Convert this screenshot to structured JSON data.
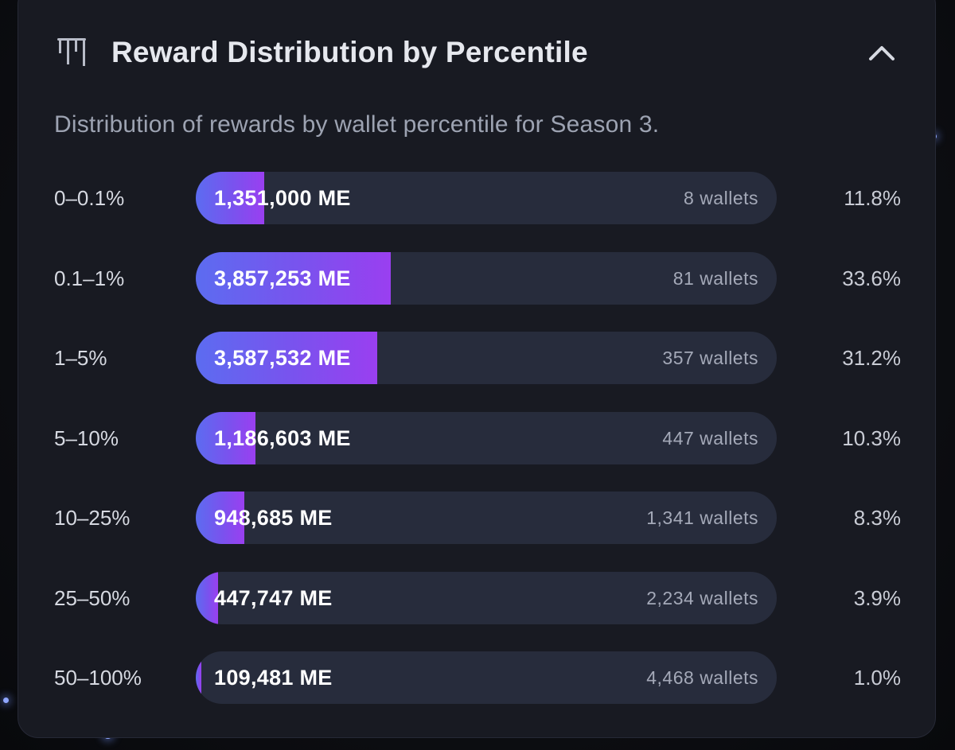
{
  "panel": {
    "title": "Reward Distribution by Percentile",
    "subtitle": "Distribution of rewards by wallet percentile for Season 3.",
    "icons": {
      "logo": "bars-logo-icon",
      "collapse": "chevron-up-icon"
    }
  },
  "colors": {
    "bar_start": "#5c6cf0",
    "bar_end": "#9a3ff0",
    "track": "#272c3c",
    "card": "#181a22"
  },
  "chart_data": {
    "type": "bar",
    "orientation": "horizontal",
    "title": "Reward Distribution by Percentile",
    "xlim": [
      0,
      100
    ],
    "rows": [
      {
        "label": "0–0.1%",
        "amount": "1,351,000 ME",
        "wallets": "8 wallets",
        "share": "11.8%",
        "value": 11.8
      },
      {
        "label": "0.1–1%",
        "amount": "3,857,253 ME",
        "wallets": "81 wallets",
        "share": "33.6%",
        "value": 33.6
      },
      {
        "label": "1–5%",
        "amount": "3,587,532 ME",
        "wallets": "357 wallets",
        "share": "31.2%",
        "value": 31.2
      },
      {
        "label": "5–10%",
        "amount": "1,186,603 ME",
        "wallets": "447 wallets",
        "share": "10.3%",
        "value": 10.3
      },
      {
        "label": "10–25%",
        "amount": "948,685 ME",
        "wallets": "1,341 wallets",
        "share": "8.3%",
        "value": 8.3
      },
      {
        "label": "25–50%",
        "amount": "447,747 ME",
        "wallets": "2,234 wallets",
        "share": "3.9%",
        "value": 3.9
      },
      {
        "label": "50–100%",
        "amount": "109,481 ME",
        "wallets": "4,468 wallets",
        "share": "1.0%",
        "value": 1.0
      }
    ]
  }
}
